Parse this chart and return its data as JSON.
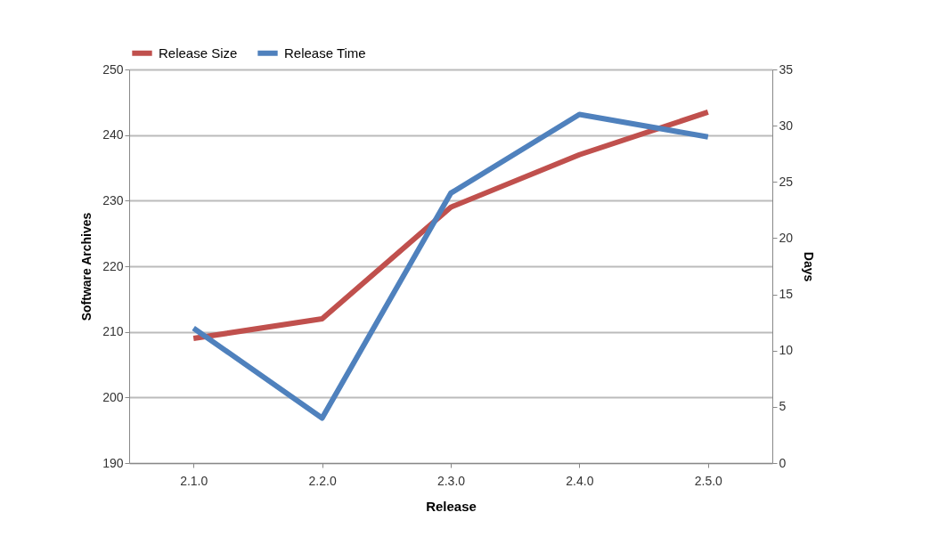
{
  "chart_data": {
    "type": "line",
    "xlabel": "Release",
    "ylabel": "Software Archives",
    "y2label": "Days",
    "categories": [
      "2.1.0",
      "2.2.0",
      "2.3.0",
      "2.4.0",
      "2.5.0"
    ],
    "series": [
      {
        "name": "Release Size",
        "color": "#c0504d",
        "values": [
          209,
          212,
          229,
          237,
          243.5
        ]
      },
      {
        "name": "Release Time",
        "color": "#4f81bd",
        "axis": "y2",
        "values": [
          12,
          4,
          24,
          31,
          29
        ]
      }
    ],
    "ylim": [
      190,
      250
    ],
    "yticks": [
      190,
      200,
      210,
      220,
      230,
      240,
      250
    ],
    "y2lim": [
      0,
      35
    ],
    "y2ticks": [
      0,
      5,
      10,
      15,
      20,
      25,
      30,
      35
    ],
    "grid": "y",
    "legend": "top",
    "marker": "none",
    "line_style": "solid"
  }
}
